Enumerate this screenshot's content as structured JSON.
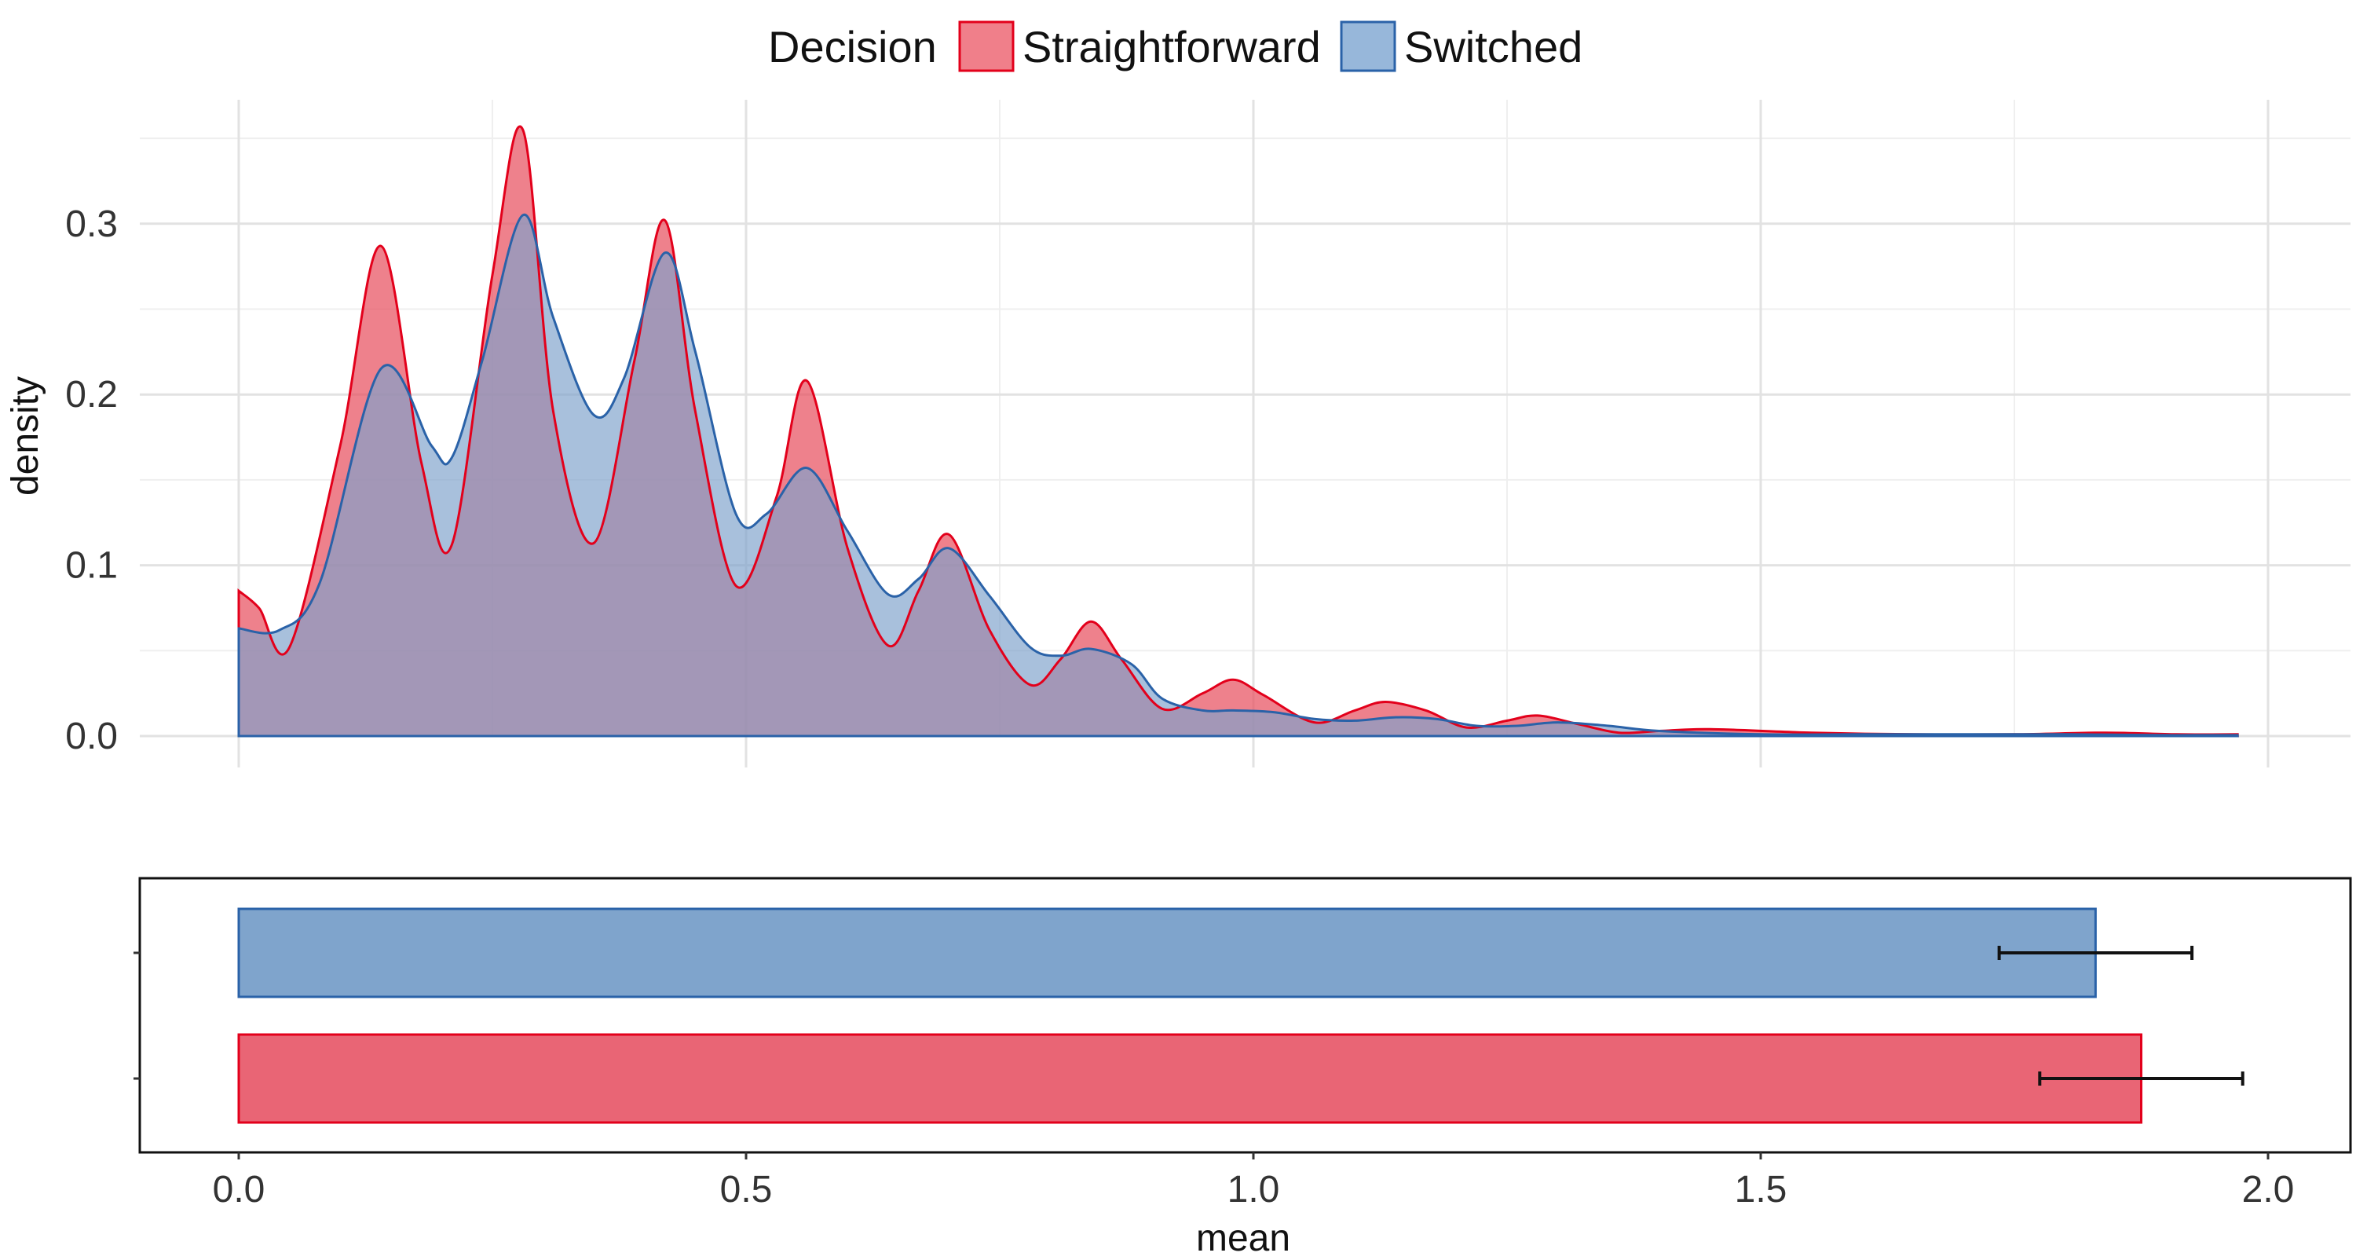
{
  "chart_data": [
    {
      "type": "area",
      "panel": "density",
      "ylabel": "density",
      "xlim": [
        -0.1,
        2.05
      ],
      "ylim": [
        0,
        0.36
      ],
      "yticks": [
        0.0,
        0.1,
        0.2,
        0.3
      ],
      "ytick_labels": [
        "0.0",
        "0.1",
        "0.2",
        "0.3"
      ],
      "legend": {
        "title": "Decision",
        "position": "top",
        "entries": [
          "Straightforward",
          "Switched"
        ]
      },
      "series": [
        {
          "name": "Straightforward",
          "fill": "#E8505F",
          "stroke": "#E3001B",
          "x": [
            0.0,
            0.02,
            0.05,
            0.1,
            0.14,
            0.18,
            0.21,
            0.25,
            0.28,
            0.31,
            0.35,
            0.39,
            0.42,
            0.45,
            0.49,
            0.53,
            0.56,
            0.6,
            0.64,
            0.67,
            0.7,
            0.74,
            0.78,
            0.81,
            0.84,
            0.87,
            0.91,
            0.95,
            0.98,
            1.01,
            1.06,
            1.1,
            1.13,
            1.17,
            1.21,
            1.25,
            1.28,
            1.32,
            1.36,
            1.4,
            1.45,
            1.55,
            1.65,
            1.75,
            1.84,
            1.91,
            1.97
          ],
          "y": [
            0.085,
            0.075,
            0.052,
            0.17,
            0.287,
            0.16,
            0.112,
            0.27,
            0.355,
            0.19,
            0.113,
            0.22,
            0.302,
            0.19,
            0.088,
            0.14,
            0.208,
            0.11,
            0.053,
            0.085,
            0.118,
            0.062,
            0.03,
            0.045,
            0.067,
            0.045,
            0.016,
            0.025,
            0.033,
            0.024,
            0.008,
            0.015,
            0.02,
            0.015,
            0.005,
            0.009,
            0.012,
            0.007,
            0.002,
            0.003,
            0.004,
            0.002,
            0.001,
            0.001,
            0.002,
            0.001,
            0.001
          ]
        },
        {
          "name": "Switched",
          "fill": "#7FA2CB",
          "stroke": "#2A62A8",
          "x": [
            0.0,
            0.04,
            0.08,
            0.14,
            0.19,
            0.21,
            0.24,
            0.28,
            0.31,
            0.35,
            0.38,
            0.42,
            0.45,
            0.49,
            0.52,
            0.56,
            0.6,
            0.64,
            0.67,
            0.7,
            0.74,
            0.78,
            0.81,
            0.84,
            0.88,
            0.91,
            0.95,
            0.98,
            1.02,
            1.06,
            1.1,
            1.14,
            1.18,
            1.22,
            1.26,
            1.3,
            1.35,
            1.4,
            1.5,
            1.6,
            1.7,
            1.8,
            1.9,
            1.97
          ],
          "y": [
            0.063,
            0.062,
            0.09,
            0.215,
            0.17,
            0.163,
            0.22,
            0.305,
            0.245,
            0.188,
            0.21,
            0.283,
            0.225,
            0.13,
            0.13,
            0.157,
            0.12,
            0.083,
            0.092,
            0.11,
            0.082,
            0.052,
            0.047,
            0.051,
            0.042,
            0.022,
            0.015,
            0.015,
            0.014,
            0.01,
            0.009,
            0.011,
            0.01,
            0.006,
            0.006,
            0.008,
            0.006,
            0.003,
            0.001,
            0.001,
            0.001,
            0.001,
            0.0005,
            0.0005
          ]
        }
      ]
    },
    {
      "type": "bar",
      "panel": "mean",
      "orientation": "horizontal",
      "xlabel": "mean",
      "xlim": [
        -0.1,
        2.05
      ],
      "xticks": [
        0.0,
        0.5,
        1.0,
        1.5,
        2.0
      ],
      "xtick_labels": [
        "0.0",
        "0.5",
        "1.0",
        "1.5",
        "2.0"
      ],
      "categories": [
        "Switched",
        "Straightforward"
      ],
      "values": [
        1.83,
        1.875
      ],
      "error_low": [
        1.735,
        1.775
      ],
      "error_high": [
        1.925,
        1.975
      ],
      "fills": [
        "#7FA4CC",
        "#E96575"
      ],
      "strokes": [
        "#2A62A8",
        "#E3001B"
      ]
    }
  ]
}
